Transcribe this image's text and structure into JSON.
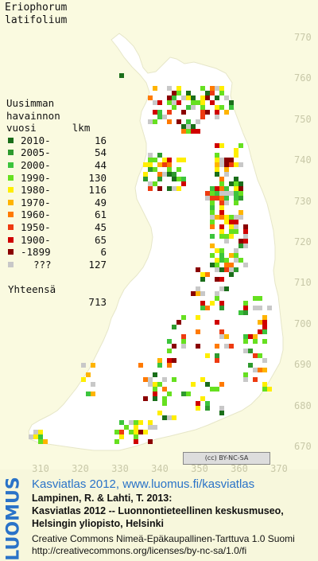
{
  "title": [
    "Eriophorum",
    "latifolium"
  ],
  "legend": {
    "header": [
      "Uusimman",
      "havainnon",
      "vuosi      lkm"
    ],
    "entries": [
      {
        "label": "2010-",
        "count": "16",
        "color": "#1a6e1a"
      },
      {
        "label": "2005-",
        "count": "54",
        "color": "#2e9a2e"
      },
      {
        "label": "2000-",
        "count": "44",
        "color": "#3cc43c"
      },
      {
        "label": "1990-",
        "count": "130",
        "color": "#66e020"
      },
      {
        "label": "1980-",
        "count": "116",
        "color": "#ffee00"
      },
      {
        "label": "1970-",
        "count": "49",
        "color": "#ffb400"
      },
      {
        "label": "1960-",
        "count": "61",
        "color": "#ff7a00"
      },
      {
        "label": "1950-",
        "count": "45",
        "color": "#ee3a10"
      },
      {
        "label": "1900-",
        "count": "65",
        "color": "#d00000"
      },
      {
        "label": "-1899",
        "count": "6",
        "color": "#8a0000"
      },
      {
        "label": "???",
        "count": "127",
        "color": "#c8c8c8"
      }
    ],
    "total_label": "Yhteensä",
    "total_count": "713"
  },
  "y_axis_labels": [
    "770",
    "760",
    "750",
    "740",
    "730",
    "720",
    "710",
    "700",
    "690",
    "680",
    "670"
  ],
  "x_axis_labels": [
    "310",
    "320",
    "330",
    "340",
    "350",
    "360",
    "370"
  ],
  "license_badge": "(cc) BY-NC-SA",
  "brand": "LUOMUS",
  "credits": {
    "line1": "Kasviatlas 2012, www.luomus.fi/kasviatlas",
    "line2": "Lampinen, R. & Lahti, T. 2013:",
    "line3": "Kasviatlas 2012 -- Luonnontieteellinen keskusmuseo,",
    "line4": "Helsingin yliopisto, Helsinki",
    "line5": "Creative Commons Nimeä-Epäkaupallinen-Tarttuva 1.0 Suomi",
    "line6": "http://creativecommons.org/licenses/by-nc-sa/1.0/fi"
  },
  "colors": {
    "accent": "#2a73c8",
    "map_background": "#fafae0",
    "land": "#ffffff"
  }
}
